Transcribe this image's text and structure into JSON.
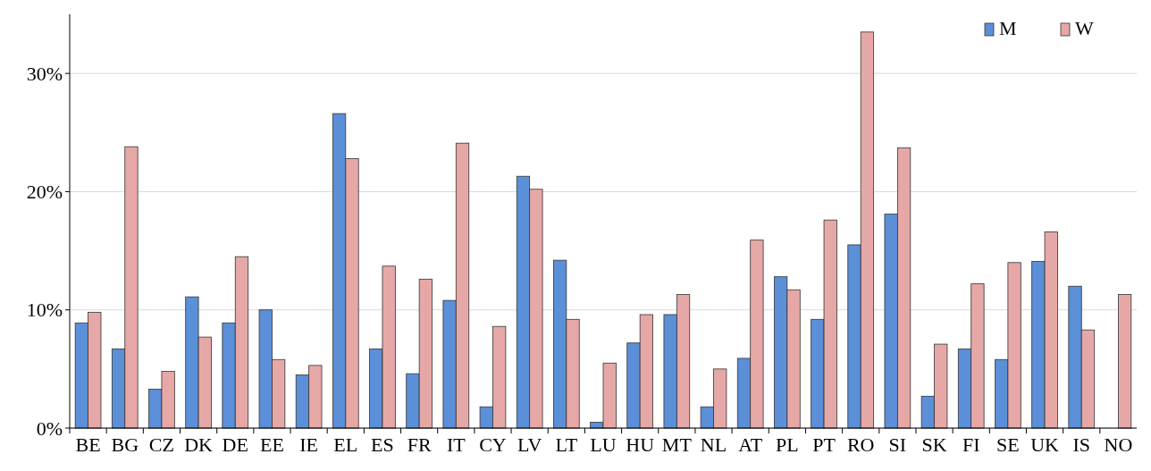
{
  "chart_data": {
    "type": "bar",
    "categories": [
      "BE",
      "BG",
      "CZ",
      "DK",
      "DE",
      "EE",
      "IE",
      "EL",
      "ES",
      "FR",
      "IT",
      "CY",
      "LV",
      "LT",
      "LU",
      "HU",
      "MT",
      "NL",
      "AT",
      "PL",
      "PT",
      "RO",
      "SI",
      "SK",
      "FI",
      "SE",
      "UK",
      "IS",
      "NO"
    ],
    "series": [
      {
        "name": "M",
        "color": "#5b8fd8",
        "values": [
          8.9,
          6.7,
          3.3,
          11.1,
          8.9,
          10.0,
          4.5,
          26.6,
          6.7,
          4.6,
          10.8,
          1.8,
          21.3,
          14.2,
          0.5,
          7.2,
          9.6,
          1.8,
          5.9,
          12.8,
          9.2,
          15.5,
          18.1,
          2.7,
          6.7,
          5.8,
          14.1,
          12.0,
          null
        ]
      },
      {
        "name": "W",
        "color": "#e6a8a6",
        "values": [
          9.8,
          23.8,
          4.8,
          7.7,
          14.5,
          5.8,
          5.3,
          22.8,
          13.7,
          12.6,
          24.1,
          8.6,
          20.2,
          9.2,
          5.5,
          9.6,
          11.3,
          5.0,
          15.9,
          11.7,
          17.6,
          33.5,
          23.7,
          7.1,
          12.2,
          14.0,
          16.6,
          8.3,
          11.3
        ]
      }
    ],
    "ylim": [
      0,
      35
    ],
    "yticks": [
      {
        "value": 0,
        "label": "0%"
      },
      {
        "value": 10,
        "label": "10%"
      },
      {
        "value": 20,
        "label": "20%"
      },
      {
        "value": 30,
        "label": "30%"
      }
    ],
    "grid": "y",
    "legend": "top right"
  }
}
